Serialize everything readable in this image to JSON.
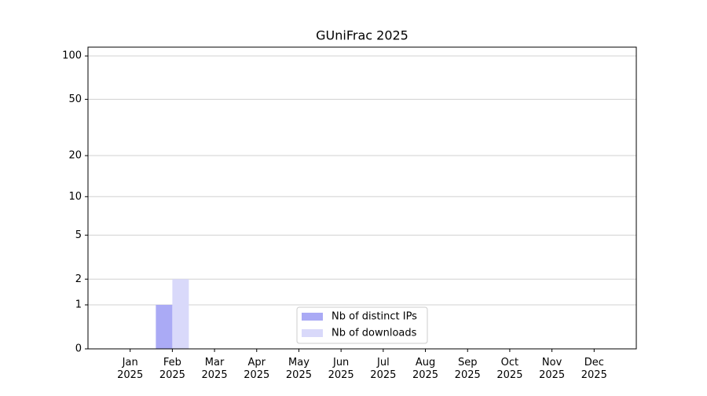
{
  "chart_data": {
    "type": "bar",
    "title": "GUniFrac 2025",
    "categories": [
      "Jan 2025",
      "Feb 2025",
      "Mar 2025",
      "Apr 2025",
      "May 2025",
      "Jun 2025",
      "Jul 2025",
      "Aug 2025",
      "Sep 2025",
      "Oct 2025",
      "Nov 2025",
      "Dec 2025"
    ],
    "series": [
      {
        "name": "Nb of distinct IPs",
        "color": "#aaaaf5",
        "values": [
          0,
          1,
          0,
          0,
          0,
          0,
          0,
          0,
          0,
          0,
          0,
          0
        ]
      },
      {
        "name": "Nb of downloads",
        "color": "#d9d9fa",
        "values": [
          0,
          2,
          0,
          0,
          0,
          0,
          0,
          0,
          0,
          0,
          0,
          0
        ]
      }
    ],
    "yscale": "log1p",
    "ylim": [
      0,
      115
    ],
    "yticks": [
      0,
      1,
      2,
      5,
      10,
      20,
      50,
      100
    ],
    "grid": true,
    "legend": "lower center"
  }
}
